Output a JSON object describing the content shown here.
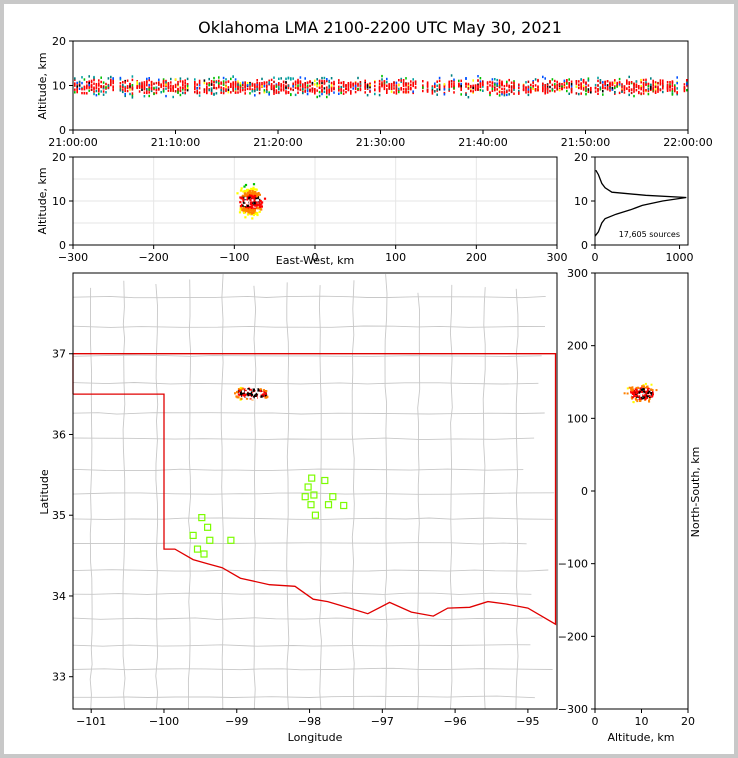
{
  "title": "Oklahoma LMA 2100-2200 UTC May 30, 2021",
  "colors": {
    "state_border": "#e00000",
    "county_line": "#c8c8c8",
    "station": "#7cfc00",
    "density": [
      "#000080",
      "#0050ff",
      "#00c0c0",
      "#00c000",
      "#ffff00",
      "#ff8000",
      "#ff0000",
      "#ffffff",
      "#000000"
    ]
  },
  "chart_data": [
    {
      "name": "time-height",
      "type": "scatter",
      "xlabel": "",
      "ylabel": "Altitude, km",
      "xlim": [
        "21:00:00",
        "22:00:00"
      ],
      "ylim": [
        0,
        20
      ],
      "xticks": [
        "21:00:00",
        "21:10:00",
        "21:20:00",
        "21:30:00",
        "21:40:00",
        "21:50:00",
        "22:00:00"
      ],
      "yticks": [
        "0",
        "10",
        "20"
      ],
      "core_altitude_km": [
        8,
        12
      ]
    },
    {
      "name": "east-west-altitude",
      "type": "heatmap",
      "xlabel": "East-West, km",
      "ylabel": "Altitude, km",
      "xlim": [
        -300,
        300
      ],
      "ylim": [
        0,
        20
      ],
      "xticks": [
        "−300",
        "−200",
        "−100",
        "0",
        "100",
        "200",
        "300"
      ],
      "yticks": [
        "0",
        "10",
        "20"
      ],
      "cluster": {
        "x_center_km": -80,
        "x_half_width_km": 20,
        "alt_center_km": 10,
        "alt_half_height_km": 7
      }
    },
    {
      "name": "altitude-histogram",
      "type": "line",
      "xlim": [
        0,
        1100
      ],
      "ylim": [
        0,
        20
      ],
      "xticks": [
        "0",
        "1000"
      ],
      "yticks": [
        "0",
        "10",
        "20"
      ],
      "annotation": "17,605 sources",
      "profile": [
        [
          0,
          2
        ],
        [
          40,
          3
        ],
        [
          60,
          4
        ],
        [
          80,
          5
        ],
        [
          120,
          6
        ],
        [
          250,
          7
        ],
        [
          420,
          8
        ],
        [
          560,
          9
        ],
        [
          800,
          10
        ],
        [
          1080,
          10.8
        ],
        [
          600,
          11.3
        ],
        [
          200,
          12
        ],
        [
          120,
          13
        ],
        [
          80,
          14
        ],
        [
          60,
          15
        ],
        [
          40,
          16
        ],
        [
          10,
          17
        ]
      ]
    },
    {
      "name": "plan-view",
      "type": "heatmap",
      "xlabel": "Longitude",
      "ylabel": "Latitude",
      "xlim": [
        -101.25,
        -94.6
      ],
      "ylim": [
        32.6,
        38.0
      ],
      "xticks": [
        "−101",
        "−100",
        "−99",
        "−98",
        "−97",
        "−96",
        "−95"
      ],
      "yticks": [
        "33",
        "34",
        "35",
        "36",
        "37"
      ],
      "cluster": {
        "lon": -98.8,
        "lat": 36.52
      },
      "stations": [
        [
          -97.97,
          35.46
        ],
        [
          -97.79,
          35.43
        ],
        [
          -98.02,
          35.35
        ],
        [
          -97.94,
          35.25
        ],
        [
          -98.06,
          35.23
        ],
        [
          -97.68,
          35.23
        ],
        [
          -97.92,
          35.0
        ],
        [
          -97.74,
          35.13
        ],
        [
          -97.53,
          35.12
        ],
        [
          -97.98,
          35.13
        ],
        [
          -99.48,
          34.97
        ],
        [
          -99.4,
          34.85
        ],
        [
          -99.6,
          34.75
        ],
        [
          -99.37,
          34.69
        ],
        [
          -99.08,
          34.69
        ],
        [
          -99.54,
          34.58
        ],
        [
          -99.45,
          34.52
        ]
      ]
    },
    {
      "name": "altitude-north-south",
      "type": "heatmap",
      "xlabel": "Altitude, km",
      "ylabel": "North-South, km",
      "xlim": [
        0,
        20
      ],
      "ylim": [
        -300,
        300
      ],
      "xticks": [
        "0",
        "10",
        "20"
      ],
      "yticks": [
        "300",
        "200",
        "100",
        "0",
        "−100",
        "−200",
        "−300"
      ],
      "cluster": {
        "alt_center_km": 10,
        "ns_center_km": 135
      }
    }
  ]
}
